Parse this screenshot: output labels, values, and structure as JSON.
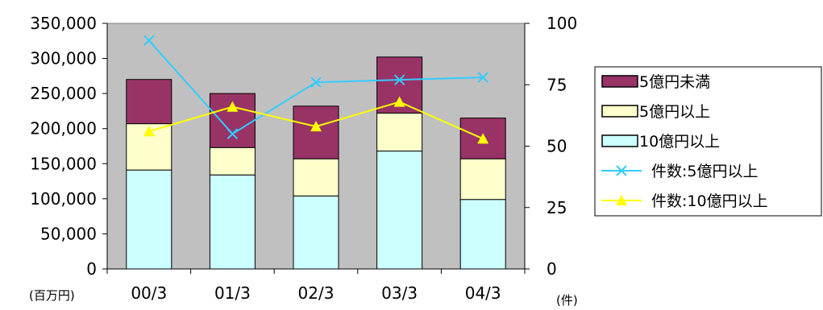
{
  "chart_data": {
    "type": "bar",
    "subtype": "stacked bar with line overlay on secondary axis",
    "categories": [
      "00/3",
      "01/3",
      "02/3",
      "03/3",
      "04/3"
    ],
    "y_left": {
      "unit_label": "(百万円)",
      "ylim": [
        0,
        350000
      ],
      "ticks": [
        "0",
        "50,000",
        "100,000",
        "150,000",
        "200,000",
        "250,000",
        "300,000",
        "350,000"
      ],
      "tick_values": [
        0,
        50000,
        100000,
        150000,
        200000,
        250000,
        300000,
        350000
      ]
    },
    "y_right": {
      "unit_label": "(件)",
      "ylim": [
        0,
        100
      ],
      "ticks": [
        "0",
        "25",
        "50",
        "75",
        "100"
      ],
      "tick_values": [
        0,
        25,
        50,
        75,
        100
      ]
    },
    "plot_background": "#c0c0c0",
    "legend_position": "right",
    "bar_series": [
      {
        "name": "10億円以上",
        "color": "#ccffff",
        "values": [
          141000,
          134000,
          104000,
          168000,
          99000
        ]
      },
      {
        "name": "5億円以上",
        "color": "#ffffcc",
        "values": [
          66000,
          39000,
          53000,
          54000,
          58000
        ]
      },
      {
        "name": "5億円未満",
        "color": "#993366",
        "values": [
          63000,
          77000,
          75000,
          80000,
          58000
        ]
      }
    ],
    "line_series": [
      {
        "name": "件数:5億円以上",
        "color": "#33ccff",
        "marker": "x",
        "axis": "right",
        "values": [
          93,
          55,
          76,
          77,
          78
        ]
      },
      {
        "name": "件数:10億円以上",
        "color": "#ffff00",
        "marker": "triangle",
        "axis": "right",
        "values": [
          56,
          66,
          58,
          68,
          53
        ]
      }
    ],
    "legend": [
      {
        "kind": "bar",
        "series": "5億円未満",
        "label": "5億円未満"
      },
      {
        "kind": "bar",
        "series": "5億円以上",
        "label": "5億円以上"
      },
      {
        "kind": "bar",
        "series": "10億円以上",
        "label": "10億円以上"
      },
      {
        "kind": "line",
        "series": "件数:5億円以上",
        "label": "件数:5億円以上"
      },
      {
        "kind": "line",
        "series": "件数:10億円以上",
        "label": "件数:10億円以上"
      }
    ]
  }
}
